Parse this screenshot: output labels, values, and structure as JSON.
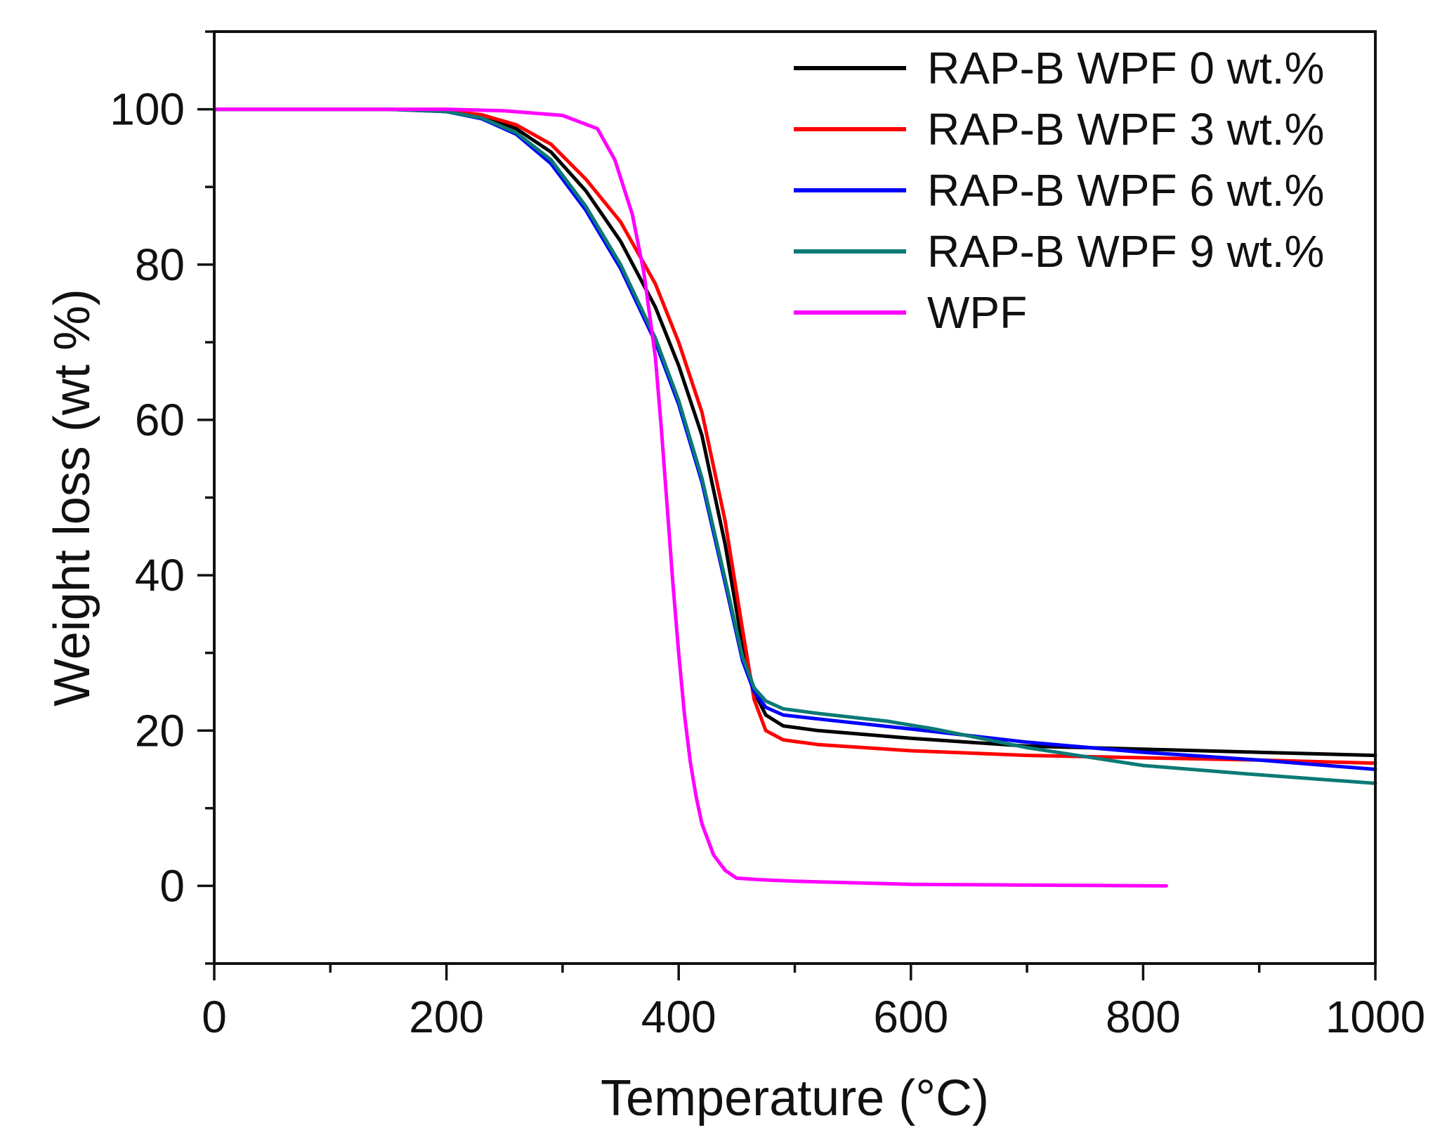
{
  "chart_data": {
    "type": "line",
    "title": "",
    "xlabel": "Temperature (°C)",
    "ylabel": "Weight loss (wt %)",
    "xlim": [
      0,
      1000
    ],
    "ylim": [
      -10,
      110
    ],
    "xticks": [
      0,
      200,
      400,
      600,
      800,
      1000
    ],
    "xtick_labels": [
      "0",
      "200",
      "400",
      "600",
      "800",
      "1000"
    ],
    "xminor": [
      100,
      300,
      500,
      700,
      900
    ],
    "yticks": [
      0,
      20,
      40,
      60,
      80,
      100
    ],
    "ytick_labels": [
      "0",
      "20",
      "40",
      "60",
      "80",
      "100"
    ],
    "yminor": [
      -10,
      10,
      30,
      50,
      70,
      90,
      110
    ],
    "grid": false,
    "legend_position": "top-right",
    "series": [
      {
        "name": "RAP-B WPF 0 wt.%",
        "color": "#000000",
        "x": [
          0,
          150,
          200,
          230,
          260,
          290,
          320,
          350,
          380,
          400,
          420,
          440,
          455,
          465,
          475,
          490,
          520,
          600,
          700,
          800,
          900,
          1000
        ],
        "y": [
          100,
          100,
          99.8,
          99.2,
          97.5,
          94.5,
          89.5,
          83,
          74.5,
          67,
          58,
          44,
          31,
          25,
          22,
          20.6,
          20,
          19,
          18,
          17.6,
          17.2,
          16.8
        ]
      },
      {
        "name": "RAP-B WPF 3 wt.%",
        "color": "#ff0000",
        "x": [
          0,
          150,
          200,
          230,
          260,
          290,
          320,
          350,
          380,
          400,
          420,
          440,
          455,
          465,
          475,
          490,
          520,
          600,
          700,
          800,
          900,
          1000
        ],
        "y": [
          100,
          100,
          99.8,
          99.3,
          98,
          95.5,
          91,
          85.5,
          77.5,
          70,
          61,
          47,
          33,
          24,
          20,
          18.8,
          18.2,
          17.4,
          16.8,
          16.5,
          16.2,
          15.8
        ]
      },
      {
        "name": "RAP-B WPF 6 wt.%",
        "color": "#0000ff",
        "x": [
          0,
          150,
          200,
          230,
          260,
          290,
          320,
          350,
          380,
          400,
          420,
          440,
          455,
          465,
          475,
          490,
          520,
          600,
          700,
          800,
          900,
          1000
        ],
        "y": [
          100,
          100,
          99.7,
          98.8,
          96.8,
          93,
          87,
          79.5,
          70,
          62,
          52,
          39,
          29,
          25,
          23,
          22,
          21.5,
          20.2,
          18.5,
          17.2,
          16.2,
          15
        ]
      },
      {
        "name": "RAP-B WPF 9 wt.%",
        "color": "#0b7a75",
        "x": [
          0,
          150,
          200,
          230,
          260,
          290,
          320,
          350,
          380,
          400,
          420,
          440,
          455,
          465,
          475,
          490,
          520,
          580,
          620,
          700,
          800,
          900,
          1000
        ],
        "y": [
          100,
          100,
          99.7,
          98.9,
          97,
          93.5,
          87.5,
          80,
          70.5,
          62.5,
          52.5,
          39.5,
          29.5,
          25.5,
          23.8,
          22.8,
          22.2,
          21.2,
          20.2,
          17.8,
          15.5,
          14.3,
          13.2
        ]
      },
      {
        "name": "WPF",
        "color": "#ff00ff",
        "x": [
          0,
          200,
          250,
          300,
          330,
          345,
          360,
          370,
          380,
          385,
          390,
          395,
          400,
          405,
          410,
          415,
          420,
          430,
          440,
          450,
          470,
          500,
          550,
          600,
          700,
          820
        ],
        "y": [
          100,
          100,
          99.8,
          99.2,
          97.5,
          93.5,
          86.5,
          79,
          68,
          59,
          49,
          39,
          30,
          22,
          16,
          11.5,
          8,
          4,
          2,
          1,
          0.8,
          0.6,
          0.4,
          0.2,
          0.1,
          0
        ]
      }
    ]
  }
}
